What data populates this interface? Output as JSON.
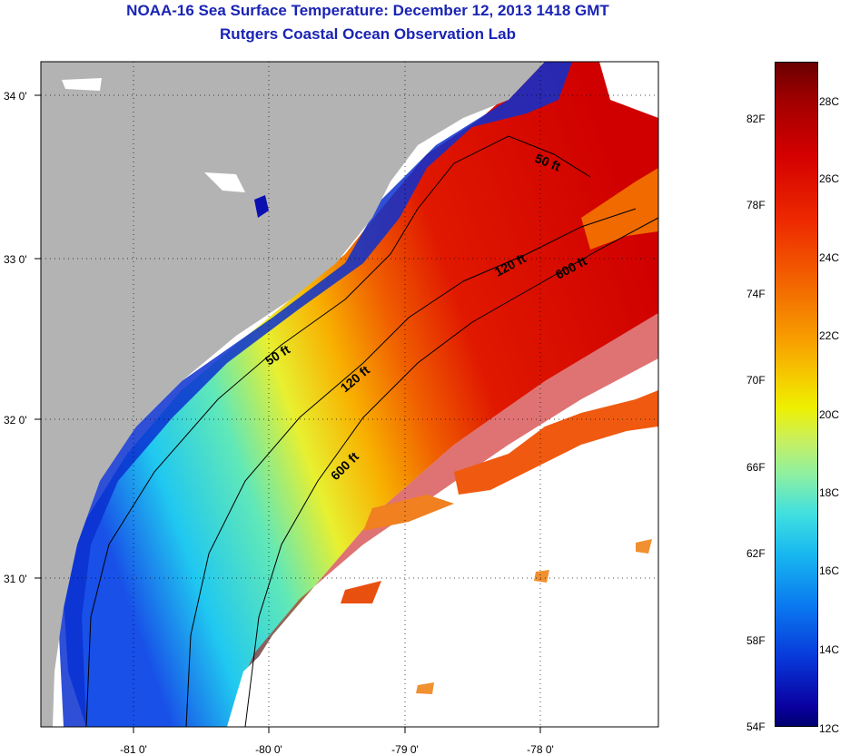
{
  "title": {
    "line1": "NOAA-16 Sea Surface Temperature:  December 12, 2013 1418 GMT",
    "line2": "Rutgers Coastal Ocean Observation Lab"
  },
  "map": {
    "lon_ticks": [
      "-81 0'",
      "-80 0'",
      "-79 0'",
      "-78 0'"
    ],
    "lat_ticks": [
      "34 0'",
      "33 0'",
      "32 0'",
      "31 0'"
    ],
    "contour_labels": [
      {
        "text": "50 ft",
        "depth": 50
      },
      {
        "text": "120 ft",
        "depth": 120
      },
      {
        "text": "600 ft",
        "depth": 600
      },
      {
        "text": "50 ft",
        "depth": 50
      },
      {
        "text": "120 ft",
        "depth": 120
      },
      {
        "text": "600 ft",
        "depth": 600
      }
    ],
    "colors": {
      "land": "#b3b3b3",
      "cloud": "#ffffff",
      "cold": "#0a22c8",
      "warm": "#d80000"
    }
  },
  "colorbar": {
    "fahrenheit": [
      "82F",
      "78F",
      "74F",
      "70F",
      "66F",
      "62F",
      "58F",
      "54F"
    ],
    "celsius": [
      "28C",
      "26C",
      "24C",
      "22C",
      "20C",
      "18C",
      "16C",
      "14C",
      "12C"
    ]
  }
}
